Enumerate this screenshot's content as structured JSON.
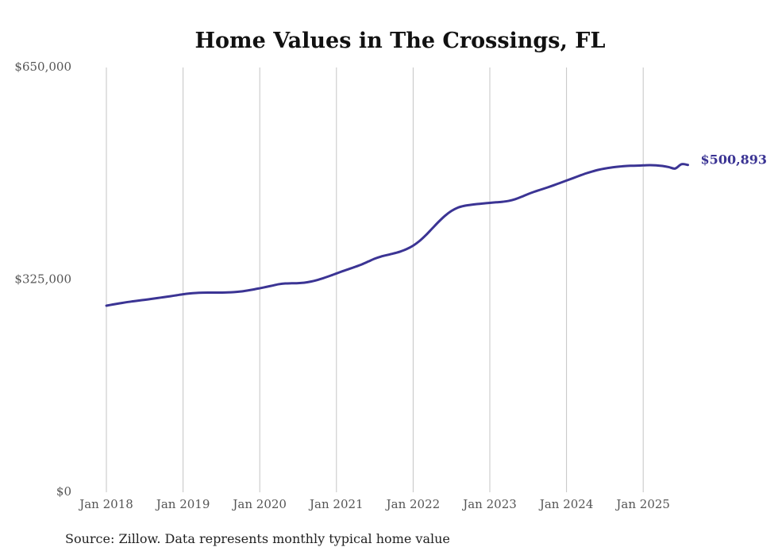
{
  "chart_data": {
    "type": "line",
    "title": "Home Values in The Crossings, FL",
    "xlabel": "",
    "ylabel": "",
    "ylim": [
      0,
      650000
    ],
    "y_ticks": [
      {
        "value": 0,
        "label": "$0"
      },
      {
        "value": 325000,
        "label": "$325,000"
      },
      {
        "value": 650000,
        "label": "$650,000"
      }
    ],
    "x_ticks": [
      "Jan 2018",
      "Jan 2019",
      "Jan 2020",
      "Jan 2021",
      "Jan 2022",
      "Jan 2023",
      "Jan 2024",
      "Jan 2025"
    ],
    "grid": "vertical",
    "series": [
      {
        "name": "Typical home value",
        "color": "#3b3494",
        "start": "Jan 2018",
        "frequency": "monthly",
        "end_label": "$500,893",
        "values": [
          285500,
          287300,
          289000,
          290600,
          292000,
          293300,
          294500,
          295800,
          297200,
          298600,
          300000,
          301500,
          303000,
          304200,
          305000,
          305400,
          305500,
          305500,
          305600,
          305800,
          306300,
          307200,
          308600,
          310300,
          312200,
          314200,
          316300,
          318400,
          319500,
          319800,
          320000,
          320800,
          322400,
          324800,
          327800,
          331200,
          334800,
          338400,
          341800,
          345200,
          348900,
          353200,
          357500,
          360800,
          363200,
          365600,
          368400,
          372200,
          377400,
          384500,
          393500,
          403800,
          414000,
          423200,
          430500,
          435600,
          438300,
          439800,
          441000,
          442000,
          442900,
          443700,
          444500,
          446000,
          448600,
          452300,
          456400,
          460000,
          463200,
          466400,
          469800,
          473400,
          477000,
          480600,
          484300,
          487800,
          490800,
          493400,
          495400,
          496900,
          498100,
          499100,
          499600,
          499800,
          500200,
          500500,
          500300,
          499300,
          497600,
          495400,
          502000,
          500893
        ]
      }
    ],
    "source": "Source: Zillow. Data represents monthly typical home value"
  }
}
